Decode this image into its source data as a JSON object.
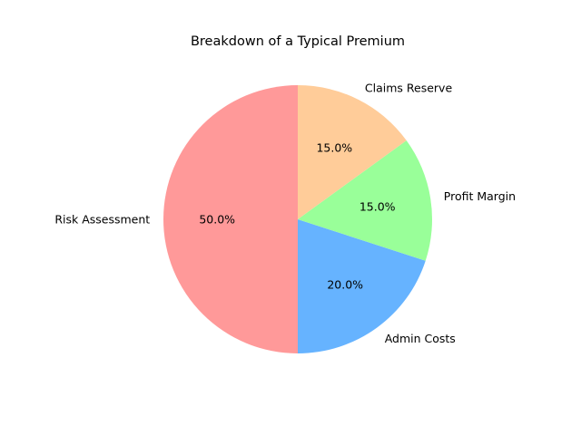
{
  "chart_data": {
    "type": "pie",
    "title": "Breakdown of a Typical Premium",
    "categories": [
      "Risk Assessment",
      "Admin Costs",
      "Profit Margin",
      "Claims Reserve"
    ],
    "values": [
      50.0,
      20.0,
      15.0,
      15.0
    ],
    "percent_labels": [
      "50.0%",
      "20.0%",
      "15.0%",
      "15.0%"
    ],
    "colors": [
      "#ff9999",
      "#66b3ff",
      "#99ff99",
      "#ffcc99"
    ],
    "start_angle_deg": 90,
    "direction": "counterclockwise",
    "legend": "none"
  }
}
